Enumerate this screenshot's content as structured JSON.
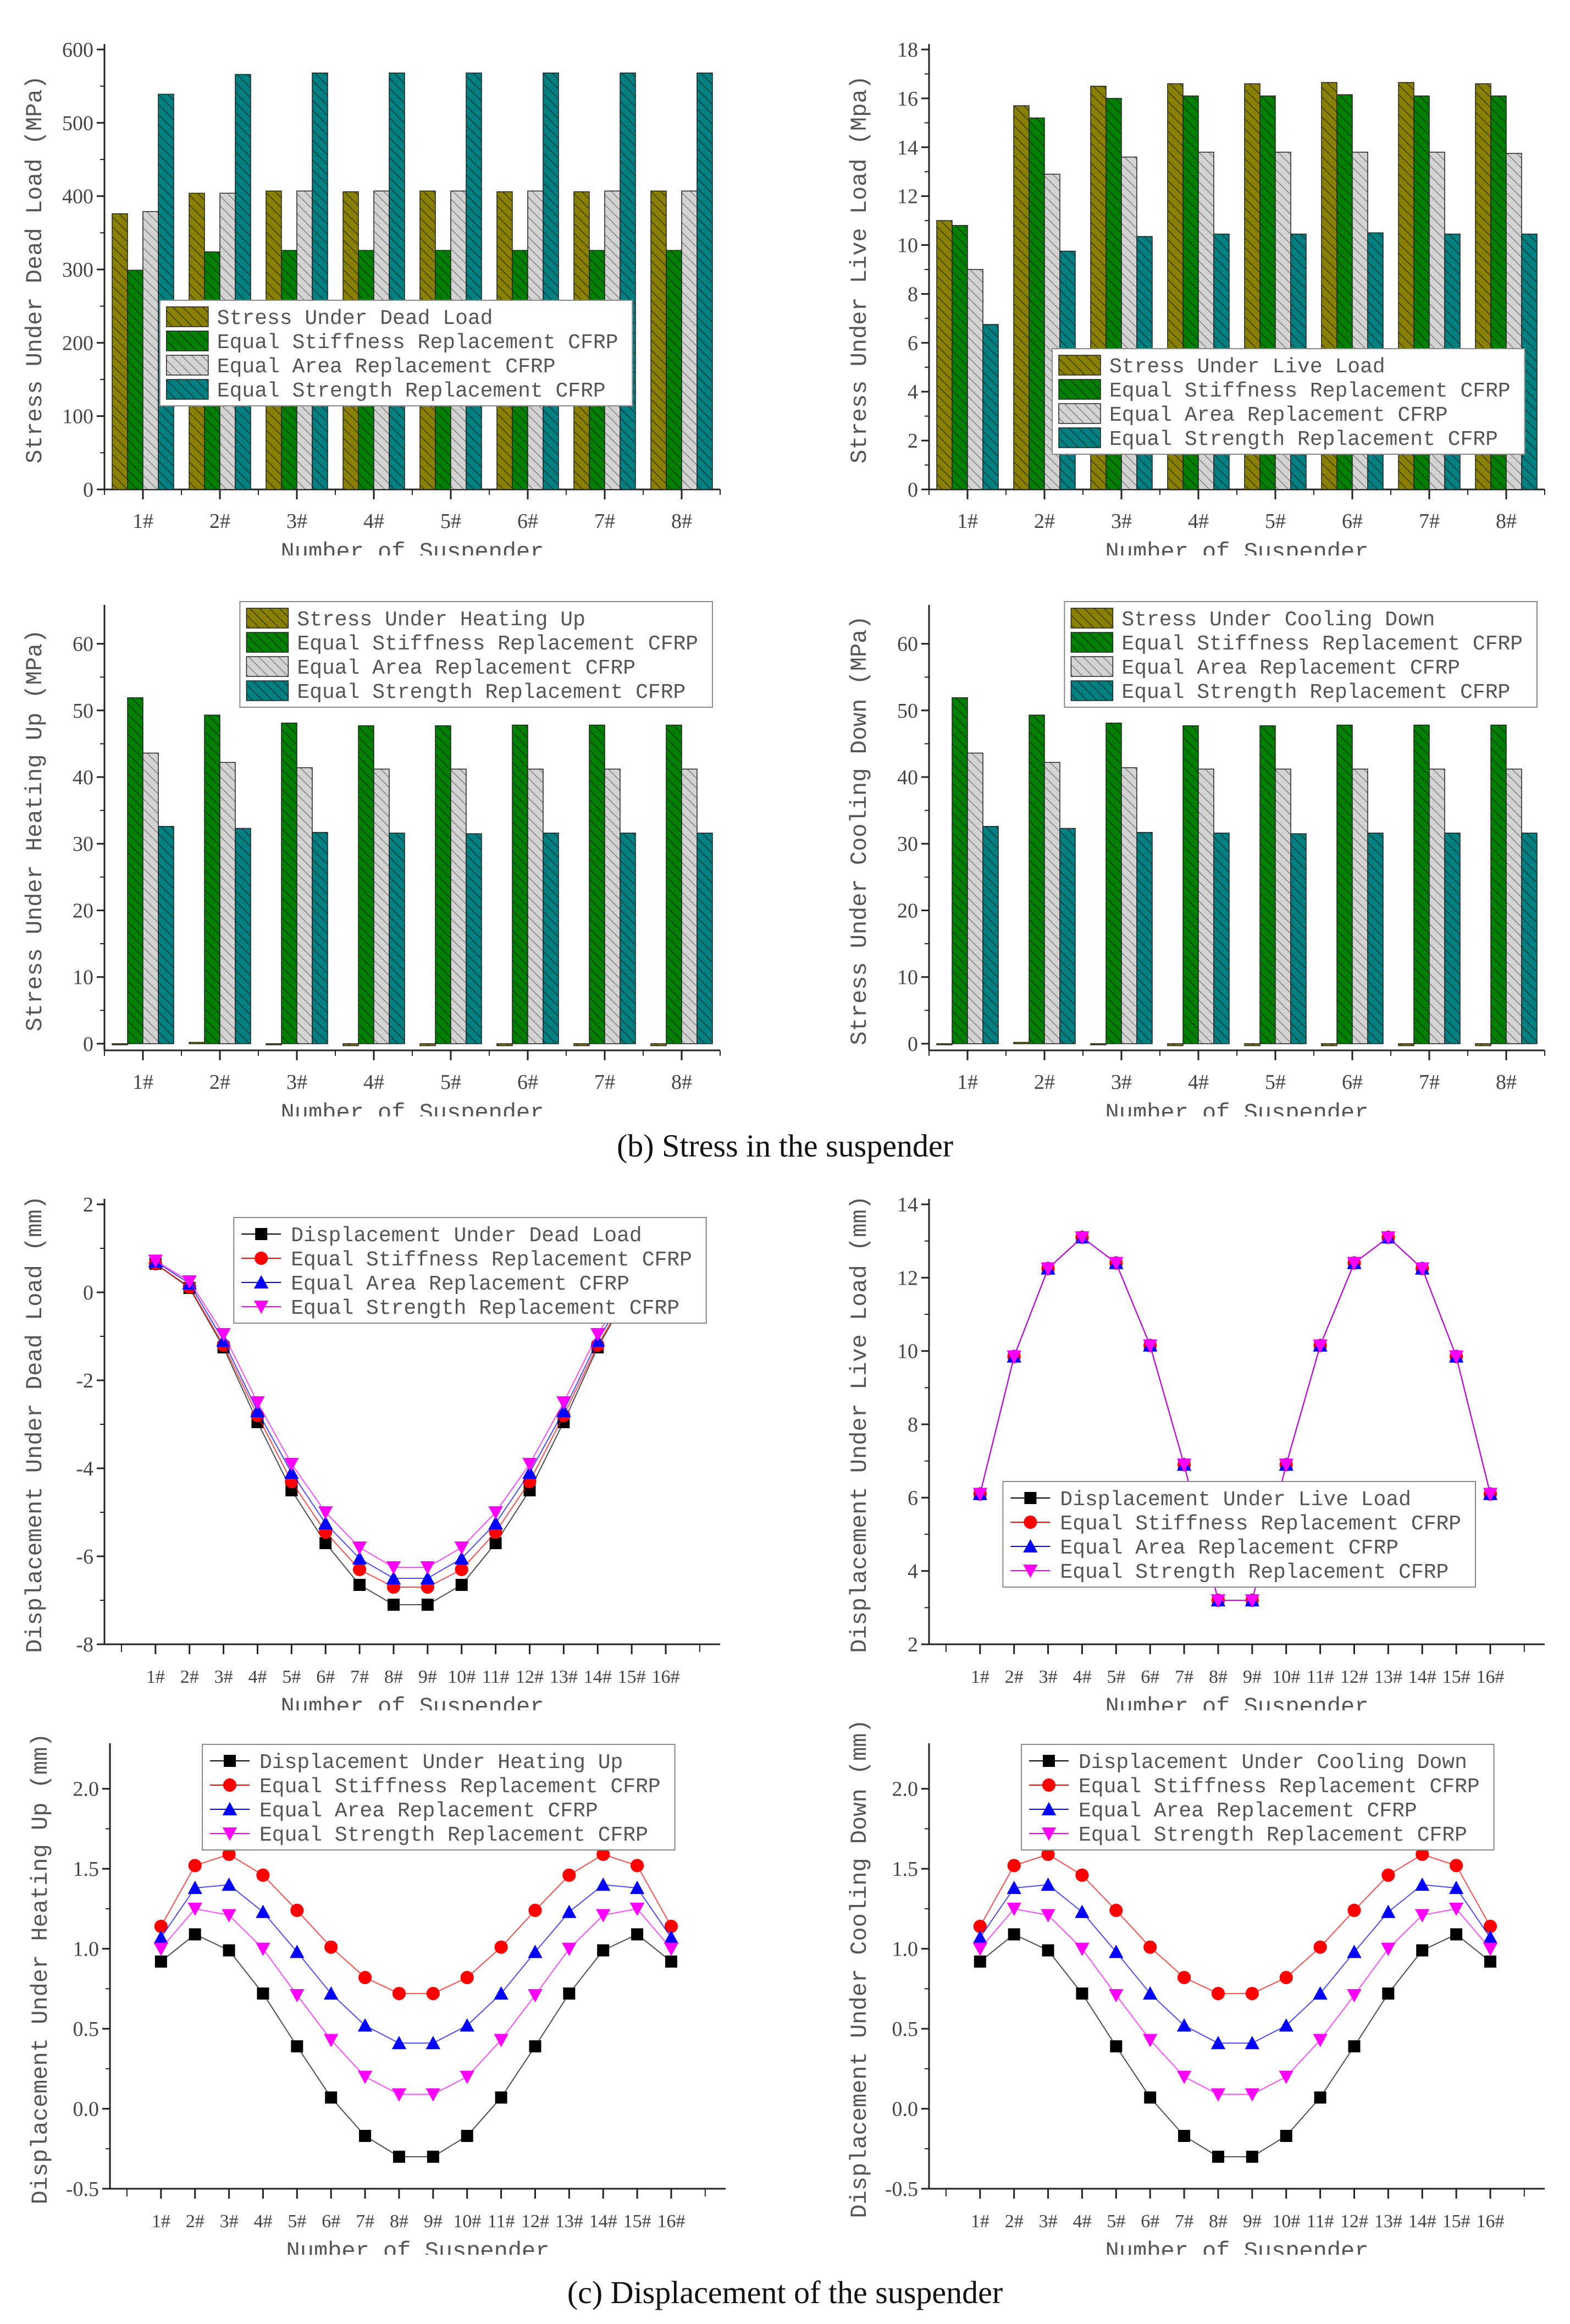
{
  "captions": {
    "stress": "(b) Stress in the suspender",
    "displacement": "(c) Displacement of the suspender"
  },
  "colors": {
    "dead_or_base_bar": "#8a8000",
    "stiffness_bar": "#008000",
    "area_bar": "#d3d3d3",
    "strength_bar": "#008080",
    "base_line": "#000000",
    "stiffness_line": "#ff0000",
    "area_line": "#0000ff",
    "strength_line": "#ff00ff"
  },
  "chart_data": [
    {
      "type": "bar",
      "xlabel": "Number of Suspender",
      "ylabel": "Stress Under Dead Load (MPa)",
      "categories": [
        "1#",
        "2#",
        "3#",
        "4#",
        "5#",
        "6#",
        "7#",
        "8#"
      ],
      "ylim": [
        0,
        600
      ],
      "yticks": [
        "0",
        "100",
        "200",
        "300",
        "400",
        "500",
        "600"
      ],
      "legend_placement": "center",
      "grid": false,
      "series": [
        {
          "name": "Stress Under Dead Load",
          "values": [
            376,
            404,
            407,
            406,
            407,
            406,
            406,
            407
          ]
        },
        {
          "name": "Equal Stiffness Replacement CFRP",
          "values": [
            299,
            324,
            326,
            326,
            326,
            326,
            326,
            326
          ]
        },
        {
          "name": "Equal Area Replacement CFRP",
          "values": [
            379,
            404,
            407,
            407,
            407,
            407,
            407,
            407
          ]
        },
        {
          "name": "Equal Strength Replacement CFRP",
          "values": [
            539,
            566,
            568,
            568,
            568,
            568,
            568,
            568
          ]
        }
      ]
    },
    {
      "type": "bar",
      "xlabel": "Number of Suspender",
      "ylabel": "Stress Under Live Load (Mpa)",
      "categories": [
        "1#",
        "2#",
        "3#",
        "4#",
        "5#",
        "6#",
        "7#",
        "8#"
      ],
      "ylim": [
        0,
        18
      ],
      "yticks": [
        "0",
        "2",
        "4",
        "6",
        "8",
        "10",
        "12",
        "14",
        "16",
        "18"
      ],
      "legend_placement": "lower-right",
      "grid": false,
      "series": [
        {
          "name": "Stress Under Live Load",
          "values": [
            11.0,
            15.7,
            16.5,
            16.6,
            16.6,
            16.65,
            16.65,
            16.6
          ]
        },
        {
          "name": "Equal Stiffness Replacement CFRP",
          "values": [
            10.8,
            15.2,
            16.0,
            16.1,
            16.1,
            16.15,
            16.1,
            16.1
          ]
        },
        {
          "name": "Equal Area Replacement CFRP",
          "values": [
            9.0,
            12.9,
            13.6,
            13.8,
            13.8,
            13.8,
            13.8,
            13.75
          ]
        },
        {
          "name": "Equal Strength Replacement CFRP",
          "values": [
            6.75,
            9.75,
            10.35,
            10.45,
            10.45,
            10.5,
            10.45,
            10.45
          ]
        }
      ]
    },
    {
      "type": "bar",
      "xlabel": "Number of Suspender",
      "ylabel": "Stress Under Heating Up (MPa)",
      "categories": [
        "1#",
        "2#",
        "3#",
        "4#",
        "5#",
        "6#",
        "7#",
        "8#"
      ],
      "ylim": [
        -1,
        65
      ],
      "yticks": [
        "0",
        "10",
        "20",
        "30",
        "40",
        "50",
        "60"
      ],
      "legend_placement": "top-right",
      "grid": false,
      "series": [
        {
          "name": "Stress Under Heating Up",
          "values": [
            -0.1,
            0.2,
            -0.1,
            -0.3,
            -0.3,
            -0.3,
            -0.3,
            -0.3
          ]
        },
        {
          "name": "Equal Stiffness Replacement CFRP",
          "values": [
            51.9,
            49.3,
            48.1,
            47.7,
            47.7,
            47.8,
            47.8,
            47.8
          ]
        },
        {
          "name": "Equal Area Replacement CFRP",
          "values": [
            43.6,
            42.2,
            41.4,
            41.2,
            41.2,
            41.2,
            41.2,
            41.2
          ]
        },
        {
          "name": "Equal Strength Replacement CFRP",
          "values": [
            32.6,
            32.3,
            31.7,
            31.6,
            31.5,
            31.6,
            31.6,
            31.6
          ]
        }
      ]
    },
    {
      "type": "bar",
      "xlabel": "Number of Suspender",
      "ylabel": "Stress Under  Cooling Down (MPa)",
      "categories": [
        "1#",
        "2#",
        "3#",
        "4#",
        "5#",
        "6#",
        "7#",
        "8#"
      ],
      "ylim": [
        -1,
        65
      ],
      "yticks": [
        "0",
        "10",
        "20",
        "30",
        "40",
        "50",
        "60"
      ],
      "legend_placement": "top-right",
      "grid": false,
      "series": [
        {
          "name": "Stress Under  Cooling Down",
          "values": [
            -0.1,
            0.2,
            -0.1,
            -0.3,
            -0.3,
            -0.3,
            -0.3,
            -0.3
          ]
        },
        {
          "name": "Equal Stiffness Replacement CFRP",
          "values": [
            51.9,
            49.3,
            48.1,
            47.7,
            47.7,
            47.8,
            47.8,
            47.8
          ]
        },
        {
          "name": "Equal Area Replacement CFRP",
          "values": [
            43.6,
            42.2,
            41.4,
            41.2,
            41.2,
            41.2,
            41.2,
            41.2
          ]
        },
        {
          "name": "Equal Strength Replacement CFRP",
          "values": [
            32.6,
            32.3,
            31.7,
            31.6,
            31.5,
            31.6,
            31.6,
            31.6
          ]
        }
      ]
    },
    {
      "type": "line",
      "xlabel": "Number of Suspender",
      "ylabel": "Displacement Under Dead Load (mm)",
      "categories": [
        "1#",
        "2#",
        "3#",
        "4#",
        "5#",
        "6#",
        "7#",
        "8#",
        "9#",
        "10#",
        "11#",
        "12#",
        "13#",
        "14#",
        "15#",
        "16#"
      ],
      "ylim": [
        -8,
        2
      ],
      "yticks": [
        "-8",
        "-6",
        "-4",
        "-2",
        "0",
        "2"
      ],
      "legend_placement": "top-center",
      "grid": false,
      "series": [
        {
          "name": "Displacement Under Dead Load",
          "values": [
            0.65,
            0.1,
            -1.25,
            -2.95,
            -4.5,
            -5.7,
            -6.65,
            -7.1,
            -7.1,
            -6.65,
            -5.7,
            -4.5,
            -2.95,
            -1.25,
            0.1,
            0.65
          ]
        },
        {
          "name": "Equal Stiffness Replacement CFRP",
          "values": [
            0.65,
            0.12,
            -1.2,
            -2.8,
            -4.3,
            -5.45,
            -6.3,
            -6.7,
            -6.7,
            -6.3,
            -5.45,
            -4.3,
            -2.8,
            -1.2,
            0.12,
            0.65
          ]
        },
        {
          "name": "Equal Area Replacement CFRP",
          "values": [
            0.7,
            0.2,
            -1.1,
            -2.7,
            -4.1,
            -5.25,
            -6.05,
            -6.5,
            -6.5,
            -6.05,
            -5.25,
            -4.1,
            -2.7,
            -1.1,
            0.2,
            0.7
          ]
        },
        {
          "name": "Equal Strength Replacement CFRP",
          "values": [
            0.72,
            0.25,
            -0.95,
            -2.5,
            -3.9,
            -5.0,
            -5.8,
            -6.25,
            -6.25,
            -5.8,
            -5.0,
            -3.9,
            -2.5,
            -0.95,
            0.25,
            0.72
          ]
        }
      ]
    },
    {
      "type": "line",
      "xlabel": "Number of Suspender",
      "ylabel": "Displacement Under Live Load (mm)",
      "categories": [
        "1#",
        "2#",
        "3#",
        "4#",
        "5#",
        "6#",
        "7#",
        "8#",
        "9#",
        "10#",
        "11#",
        "12#",
        "13#",
        "14#",
        "15#",
        "16#"
      ],
      "ylim": [
        2,
        14
      ],
      "yticks": [
        "2",
        "4",
        "6",
        "8",
        "10",
        "12",
        "14"
      ],
      "legend_placement": "lower-center",
      "grid": false,
      "series": [
        {
          "name": "Displacement Under Live Load",
          "values": [
            6.1,
            9.85,
            12.25,
            13.1,
            12.4,
            10.15,
            6.9,
            3.2,
            3.2,
            6.9,
            10.15,
            12.4,
            13.1,
            12.25,
            9.85,
            6.1
          ]
        },
        {
          "name": "Equal Stiffness Replacement CFRP",
          "values": [
            6.1,
            9.85,
            12.25,
            13.1,
            12.4,
            10.15,
            6.9,
            3.2,
            3.2,
            6.9,
            10.15,
            12.4,
            13.1,
            12.25,
            9.85,
            6.1
          ]
        },
        {
          "name": "Equal Area Replacement CFRP",
          "values": [
            6.1,
            9.85,
            12.25,
            13.1,
            12.4,
            10.15,
            6.9,
            3.2,
            3.2,
            6.9,
            10.15,
            12.4,
            13.1,
            12.25,
            9.85,
            6.1
          ]
        },
        {
          "name": "Equal Strength Replacement CFRP",
          "values": [
            6.1,
            9.85,
            12.25,
            13.1,
            12.4,
            10.15,
            6.9,
            3.2,
            3.2,
            6.9,
            10.15,
            12.4,
            13.1,
            12.25,
            9.85,
            6.1
          ]
        }
      ]
    },
    {
      "type": "line",
      "xlabel": "Number of Suspender",
      "ylabel": "Displacement Under Heating Up (mm)",
      "categories": [
        "1#",
        "2#",
        "3#",
        "4#",
        "5#",
        "6#",
        "7#",
        "8#",
        "9#",
        "10#",
        "11#",
        "12#",
        "13#",
        "14#",
        "15#",
        "16#"
      ],
      "ylim": [
        -0.5,
        2.25
      ],
      "yticks": [
        "-0.5",
        "0.0",
        "0.5",
        "1.0",
        "1.5",
        "2.0"
      ],
      "legend_placement": "top",
      "grid": false,
      "series": [
        {
          "name": "Displacement Under Heating Up",
          "values": [
            0.92,
            1.09,
            0.99,
            0.72,
            0.39,
            0.07,
            -0.17,
            -0.3,
            -0.3,
            -0.17,
            0.07,
            0.39,
            0.72,
            0.99,
            1.09,
            0.92
          ]
        },
        {
          "name": "Equal Stiffness Replacement CFRP",
          "values": [
            1.14,
            1.52,
            1.59,
            1.46,
            1.24,
            1.01,
            0.82,
            0.72,
            0.72,
            0.82,
            1.01,
            1.24,
            1.46,
            1.59,
            1.52,
            1.14
          ]
        },
        {
          "name": "Equal Area Replacement CFRP",
          "values": [
            1.07,
            1.38,
            1.4,
            1.23,
            0.98,
            0.72,
            0.52,
            0.41,
            0.41,
            0.52,
            0.72,
            0.98,
            1.23,
            1.4,
            1.38,
            1.07
          ]
        },
        {
          "name": "Equal Strength Replacement CFRP",
          "values": [
            1.0,
            1.25,
            1.21,
            1.0,
            0.71,
            0.43,
            0.2,
            0.09,
            0.09,
            0.2,
            0.43,
            0.71,
            1.0,
            1.21,
            1.25,
            1.0
          ]
        }
      ]
    },
    {
      "type": "line",
      "xlabel": "Number of Suspender",
      "ylabel": "Displacement Under  Cooling Down (mm)",
      "categories": [
        "1#",
        "2#",
        "3#",
        "4#",
        "5#",
        "6#",
        "7#",
        "8#",
        "9#",
        "10#",
        "11#",
        "12#",
        "13#",
        "14#",
        "15#",
        "16#"
      ],
      "ylim": [
        -0.5,
        2.25
      ],
      "yticks": [
        "-0.5",
        "0.0",
        "0.5",
        "1.0",
        "1.5",
        "2.0"
      ],
      "legend_placement": "top",
      "grid": false,
      "series": [
        {
          "name": "Displacement Under  Cooling Down",
          "values": [
            0.92,
            1.09,
            0.99,
            0.72,
            0.39,
            0.07,
            -0.17,
            -0.3,
            -0.3,
            -0.17,
            0.07,
            0.39,
            0.72,
            0.99,
            1.09,
            0.92
          ]
        },
        {
          "name": "Equal Stiffness Replacement CFRP",
          "values": [
            1.14,
            1.52,
            1.59,
            1.46,
            1.24,
            1.01,
            0.82,
            0.72,
            0.72,
            0.82,
            1.01,
            1.24,
            1.46,
            1.59,
            1.52,
            1.14
          ]
        },
        {
          "name": "Equal Area Replacement CFRP",
          "values": [
            1.07,
            1.38,
            1.4,
            1.23,
            0.98,
            0.72,
            0.52,
            0.41,
            0.41,
            0.52,
            0.72,
            0.98,
            1.23,
            1.4,
            1.38,
            1.07
          ]
        },
        {
          "name": "Equal Strength Replacement CFRP",
          "values": [
            1.0,
            1.25,
            1.21,
            1.0,
            0.71,
            0.43,
            0.2,
            0.09,
            0.09,
            0.2,
            0.43,
            0.71,
            1.0,
            1.21,
            1.25,
            1.0
          ]
        }
      ]
    }
  ]
}
